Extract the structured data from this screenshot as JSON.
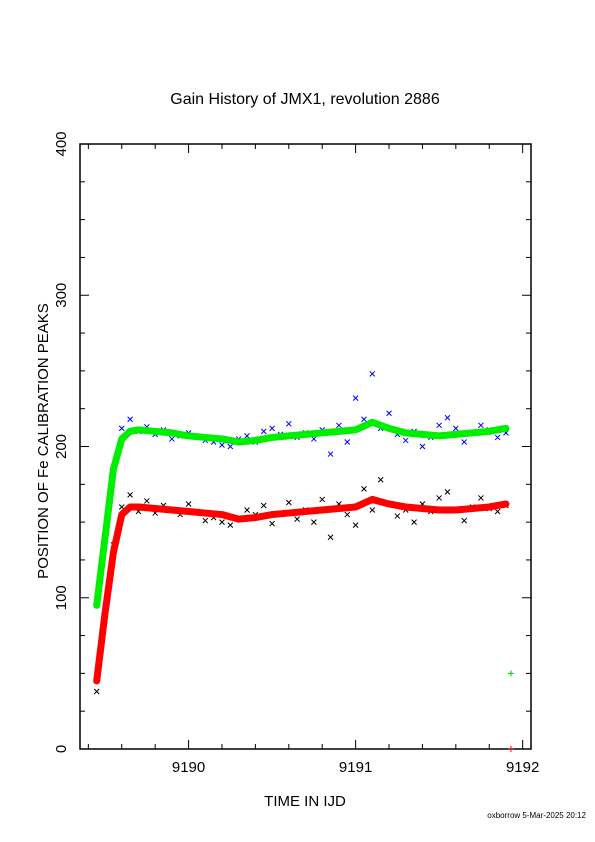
{
  "chart_data": {
    "type": "scatter",
    "title": "Gain History of JMX1, revolution 2886",
    "xlabel": "TIME IN IJD",
    "ylabel": "POSITION OF Fe CALIBRATION PEAKS",
    "xlim": [
      9189.35,
      9192.05
    ],
    "ylim": [
      0,
      400
    ],
    "x_ticks": [
      9190,
      9191,
      9192
    ],
    "y_ticks": [
      0,
      100,
      200,
      300,
      400
    ],
    "grid": false,
    "legend": "none",
    "series": [
      {
        "marker": "x",
        "color": "#0000ff",
        "x": [
          9189.45,
          9189.5,
          9189.55,
          9189.6,
          9189.65,
          9189.7,
          9189.75,
          9189.8,
          9189.85,
          9189.9,
          9189.95,
          9190.0,
          9190.05,
          9190.1,
          9190.15,
          9190.2,
          9190.25,
          9190.3,
          9190.35,
          9190.4,
          9190.45,
          9190.5,
          9190.55,
          9190.6,
          9190.65,
          9190.7,
          9190.75,
          9190.8,
          9190.85,
          9190.9,
          9190.95,
          9191.0,
          9191.05,
          9191.1,
          9191.15,
          9191.2,
          9191.25,
          9191.3,
          9191.35,
          9191.4,
          9191.45,
          9191.5,
          9191.55,
          9191.6,
          9191.65,
          9191.7,
          9191.75,
          9191.8,
          9191.85,
          9191.9
        ],
        "y": [
          95,
          140,
          185,
          212,
          218,
          210,
          213,
          208,
          211,
          205,
          207,
          209,
          206,
          204,
          203,
          201,
          200,
          205,
          207,
          203,
          210,
          212,
          208,
          215,
          206,
          209,
          205,
          211,
          195,
          214,
          203,
          232,
          218,
          248,
          212,
          222,
          208,
          204,
          210,
          200,
          206,
          214,
          219,
          212,
          203,
          209,
          214,
          211,
          206,
          209
        ]
      },
      {
        "marker": "x",
        "color": "#000000",
        "x": [
          9189.45,
          9189.5,
          9189.55,
          9189.6,
          9189.65,
          9189.7,
          9189.75,
          9189.8,
          9189.85,
          9189.9,
          9189.95,
          9190.0,
          9190.05,
          9190.1,
          9190.15,
          9190.2,
          9190.25,
          9190.3,
          9190.35,
          9190.4,
          9190.45,
          9190.5,
          9190.55,
          9190.6,
          9190.65,
          9190.7,
          9190.75,
          9190.8,
          9190.85,
          9190.9,
          9190.95,
          9191.0,
          9191.05,
          9191.1,
          9191.15,
          9191.2,
          9191.25,
          9191.3,
          9191.35,
          9191.4,
          9191.45,
          9191.5,
          9191.55,
          9191.6,
          9191.65,
          9191.7,
          9191.75,
          9191.8,
          9191.85,
          9191.9
        ],
        "y": [
          38,
          90,
          135,
          160,
          168,
          157,
          164,
          156,
          161,
          158,
          155,
          162,
          157,
          151,
          153,
          150,
          148,
          152,
          158,
          155,
          161,
          149,
          156,
          163,
          152,
          158,
          150,
          165,
          140,
          162,
          155,
          148,
          172,
          158,
          178,
          162,
          154,
          158,
          150,
          162,
          157,
          166,
          170,
          158,
          151,
          160,
          166,
          159,
          157,
          161
        ]
      },
      {
        "name": "",
        "marker": "line",
        "color": "#00ee00",
        "x": [
          9189.45,
          9189.5,
          9189.55,
          9189.6,
          9189.65,
          9189.7,
          9189.8,
          9189.9,
          9190.0,
          9190.1,
          9190.2,
          9190.3,
          9190.4,
          9190.5,
          9190.6,
          9190.7,
          9190.8,
          9190.9,
          9191.0,
          9191.1,
          9191.2,
          9191.3,
          9191.4,
          9191.5,
          9191.6,
          9191.7,
          9191.8,
          9191.9
        ],
        "y": [
          95,
          140,
          185,
          205,
          210,
          211,
          210,
          209,
          207,
          206,
          205,
          203,
          204,
          206,
          207,
          208,
          209,
          210,
          211,
          216,
          212,
          209,
          208,
          207,
          208,
          209,
          210,
          212
        ]
      },
      {
        "name": "",
        "marker": "line",
        "color": "#ff0000",
        "x": [
          9189.45,
          9189.5,
          9189.55,
          9189.6,
          9189.65,
          9189.7,
          9189.8,
          9189.9,
          9190.0,
          9190.1,
          9190.2,
          9190.3,
          9190.4,
          9190.5,
          9190.6,
          9190.7,
          9190.8,
          9190.9,
          9191.0,
          9191.1,
          9191.2,
          9191.3,
          9191.4,
          9191.5,
          9191.6,
          9191.7,
          9191.8,
          9191.9
        ],
        "y": [
          45,
          90,
          130,
          155,
          160,
          160,
          159,
          158,
          157,
          156,
          155,
          152,
          153,
          155,
          156,
          157,
          158,
          159,
          160,
          165,
          162,
          160,
          159,
          158,
          158,
          159,
          160,
          162
        ]
      },
      {
        "marker": "+",
        "color": "#00cc00",
        "x": [
          9191.93
        ],
        "y": [
          50
        ]
      },
      {
        "marker": "+",
        "color": "#ff0000",
        "x": [
          9191.93
        ],
        "y": [
          0
        ]
      }
    ]
  },
  "footer": "oxborrow  5-Mar-2025 20:12"
}
